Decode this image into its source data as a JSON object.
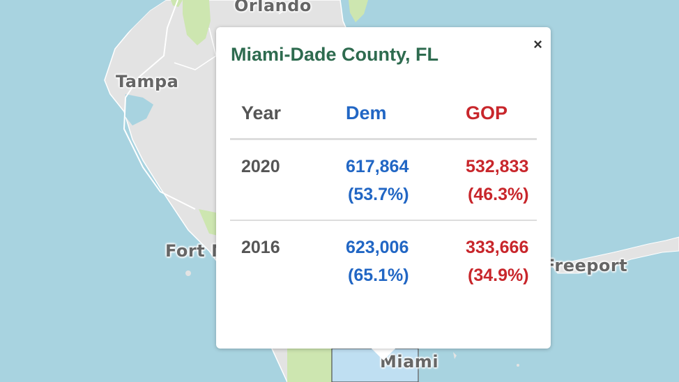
{
  "map": {
    "cities": [
      "Orlando",
      "Tampa",
      "Fort M",
      "Freeport",
      "Miami"
    ]
  },
  "popup": {
    "title": "Miami-Dade County, FL",
    "close_label": "×",
    "headers": {
      "year": "Year",
      "dem": "Dem",
      "gop": "GOP"
    },
    "rows": [
      {
        "year": "2020",
        "dem_votes": "617,864",
        "dem_pct": "(53.7%)",
        "gop_votes": "532,833",
        "gop_pct": "(46.3%)"
      },
      {
        "year": "2016",
        "dem_votes": "623,006",
        "dem_pct": "(65.1%)",
        "gop_votes": "333,666",
        "gop_pct": "(34.9%)"
      }
    ]
  },
  "colors": {
    "water": "#a8d3e0",
    "land": "#e3e3e3",
    "park": "#cde6b0",
    "county_highlight": "#bfdff2",
    "title": "#2e6b4f",
    "dem": "#2166c4",
    "gop": "#c8262b"
  }
}
